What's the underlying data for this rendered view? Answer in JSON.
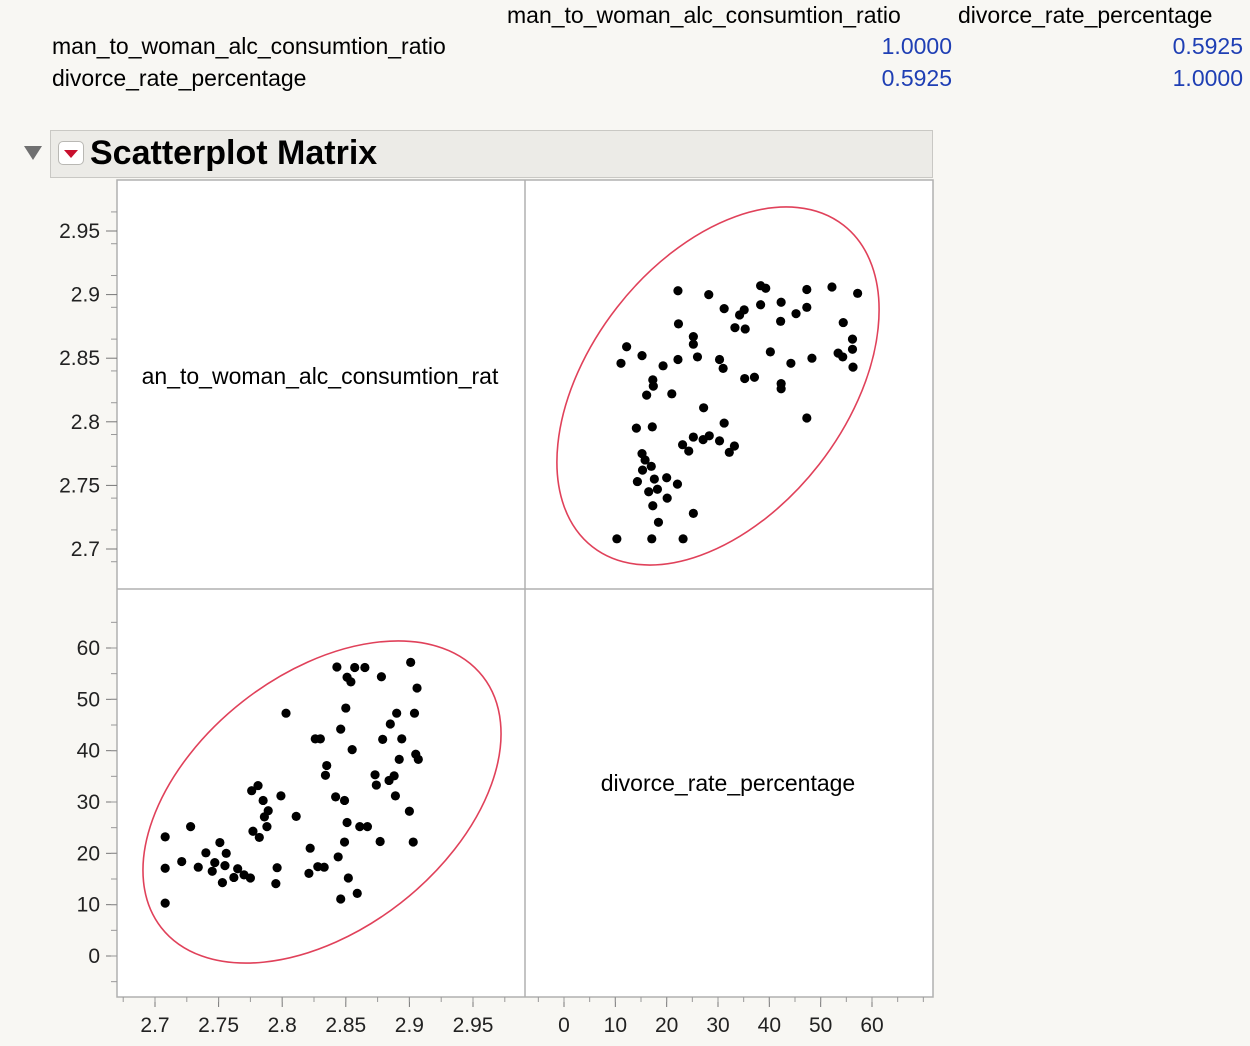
{
  "correlations": {
    "columns": [
      "man_to_woman_alc_consumtion_ratio",
      "divorce_rate_percentage"
    ],
    "rows": [
      {
        "label": "man_to_woman_alc_consumtion_ratio",
        "values": [
          "1.0000",
          "0.5925"
        ]
      },
      {
        "label": "divorce_rate_percentage",
        "values": [
          "0.5925",
          "1.0000"
        ]
      }
    ],
    "value_color": "#1f3fb4"
  },
  "section": {
    "title": "Scatterplot Matrix"
  },
  "chart_data": {
    "type": "scatter",
    "title": "Scatterplot Matrix",
    "variables": [
      "man_to_woman_alc_consumtion_ratio",
      "divorce_rate_percentage"
    ],
    "diagonal_labels": [
      "an_to_woman_alc_consumtion_rat",
      "divorce_rate_percentage"
    ],
    "axes": {
      "ratio": {
        "range": [
          2.68,
          2.98
        ],
        "ticks": [
          2.7,
          2.75,
          2.8,
          2.85,
          2.9,
          2.95
        ],
        "tick_labels": [
          "2.7",
          "2.75",
          "2.8",
          "2.85",
          "2.9",
          "2.95"
        ]
      },
      "divorce": {
        "range": [
          -7,
          66
        ],
        "ticks": [
          0,
          10,
          20,
          30,
          40,
          50,
          60
        ],
        "tick_labels": [
          "0",
          "10",
          "20",
          "30",
          "40",
          "50",
          "60"
        ]
      }
    },
    "point_color": "#000000",
    "ellipse_color": "#e0415a",
    "grid": false,
    "points": [
      [
        2.708,
        10.3
      ],
      [
        2.708,
        17.1
      ],
      [
        2.708,
        23.2
      ],
      [
        2.721,
        18.4
      ],
      [
        2.728,
        25.2
      ],
      [
        2.734,
        17.3
      ],
      [
        2.74,
        20.1
      ],
      [
        2.745,
        16.5
      ],
      [
        2.747,
        18.2
      ],
      [
        2.751,
        22.1
      ],
      [
        2.753,
        14.3
      ],
      [
        2.755,
        17.6
      ],
      [
        2.756,
        20.0
      ],
      [
        2.762,
        15.3
      ],
      [
        2.765,
        17.0
      ],
      [
        2.77,
        15.8
      ],
      [
        2.775,
        15.2
      ],
      [
        2.777,
        24.3
      ],
      [
        2.776,
        32.2
      ],
      [
        2.781,
        33.2
      ],
      [
        2.782,
        23.1
      ],
      [
        2.785,
        30.3
      ],
      [
        2.786,
        27.1
      ],
      [
        2.788,
        25.2
      ],
      [
        2.789,
        28.3
      ],
      [
        2.795,
        14.1
      ],
      [
        2.796,
        17.2
      ],
      [
        2.799,
        31.2
      ],
      [
        2.803,
        47.3
      ],
      [
        2.811,
        27.2
      ],
      [
        2.821,
        16.1
      ],
      [
        2.822,
        21.0
      ],
      [
        2.826,
        42.3
      ],
      [
        2.828,
        17.4
      ],
      [
        2.83,
        42.3
      ],
      [
        2.833,
        17.3
      ],
      [
        2.834,
        35.2
      ],
      [
        2.835,
        37.1
      ],
      [
        2.842,
        31.0
      ],
      [
        2.843,
        56.3
      ],
      [
        2.844,
        19.3
      ],
      [
        2.846,
        11.1
      ],
      [
        2.846,
        44.2
      ],
      [
        2.849,
        22.2
      ],
      [
        2.849,
        30.3
      ],
      [
        2.85,
        48.3
      ],
      [
        2.851,
        54.3
      ],
      [
        2.851,
        26.0
      ],
      [
        2.852,
        15.2
      ],
      [
        2.854,
        53.4
      ],
      [
        2.855,
        40.2
      ],
      [
        2.857,
        56.2
      ],
      [
        2.859,
        12.2
      ],
      [
        2.861,
        25.2
      ],
      [
        2.865,
        56.2
      ],
      [
        2.867,
        25.2
      ],
      [
        2.873,
        35.3
      ],
      [
        2.874,
        33.3
      ],
      [
        2.877,
        22.3
      ],
      [
        2.878,
        54.4
      ],
      [
        2.879,
        42.2
      ],
      [
        2.884,
        34.2
      ],
      [
        2.885,
        45.2
      ],
      [
        2.888,
        35.1
      ],
      [
        2.889,
        31.2
      ],
      [
        2.89,
        47.3
      ],
      [
        2.892,
        38.3
      ],
      [
        2.894,
        42.3
      ],
      [
        2.9,
        28.2
      ],
      [
        2.901,
        57.2
      ],
      [
        2.903,
        22.2
      ],
      [
        2.904,
        47.3
      ],
      [
        2.905,
        39.3
      ],
      [
        2.906,
        52.2
      ],
      [
        2.907,
        38.3
      ]
    ],
    "correlation": 0.5925
  }
}
